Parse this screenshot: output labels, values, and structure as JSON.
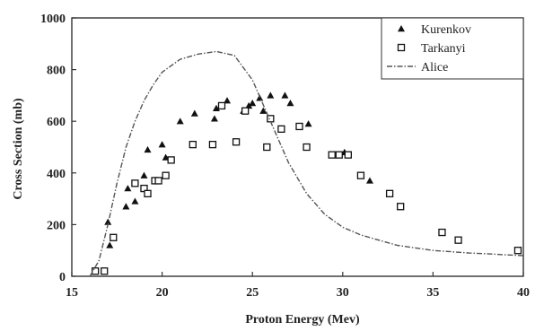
{
  "chart_data": {
    "type": "scatter",
    "xlabel": "Proton Energy (Mev)",
    "ylabel": "Cross Section (mb)",
    "xlim": [
      15,
      40
    ],
    "ylim": [
      0,
      1000
    ],
    "xticks": [
      15,
      20,
      25,
      30,
      35,
      40
    ],
    "yticks": [
      0,
      200,
      400,
      600,
      800,
      1000
    ],
    "grid": false,
    "legend_position": "top-right",
    "series": [
      {
        "name": "Kurenkov",
        "marker": "triangle",
        "color": "#111111",
        "points": [
          [
            17.0,
            210
          ],
          [
            17.1,
            120
          ],
          [
            18.0,
            270
          ],
          [
            18.1,
            340
          ],
          [
            18.5,
            290
          ],
          [
            19.0,
            390
          ],
          [
            19.2,
            490
          ],
          [
            20.0,
            510
          ],
          [
            20.2,
            460
          ],
          [
            21.0,
            600
          ],
          [
            21.8,
            630
          ],
          [
            22.9,
            610
          ],
          [
            23.0,
            650
          ],
          [
            23.6,
            680
          ],
          [
            24.5,
            640
          ],
          [
            24.8,
            660
          ],
          [
            25.0,
            670
          ],
          [
            25.4,
            690
          ],
          [
            25.6,
            640
          ],
          [
            26.0,
            700
          ],
          [
            26.8,
            700
          ],
          [
            27.1,
            670
          ],
          [
            28.1,
            590
          ],
          [
            30.1,
            480
          ],
          [
            31.5,
            370
          ]
        ]
      },
      {
        "name": "Tarkanyi",
        "marker": "square",
        "color": "#111111",
        "points": [
          [
            16.3,
            20
          ],
          [
            16.8,
            20
          ],
          [
            17.3,
            150
          ],
          [
            18.5,
            360
          ],
          [
            19.0,
            340
          ],
          [
            19.2,
            320
          ],
          [
            19.6,
            370
          ],
          [
            19.8,
            370
          ],
          [
            20.2,
            390
          ],
          [
            20.5,
            450
          ],
          [
            21.7,
            510
          ],
          [
            22.8,
            510
          ],
          [
            23.3,
            660
          ],
          [
            24.1,
            520
          ],
          [
            24.6,
            640
          ],
          [
            25.8,
            500
          ],
          [
            26.0,
            610
          ],
          [
            26.6,
            570
          ],
          [
            27.6,
            580
          ],
          [
            28.0,
            500
          ],
          [
            29.4,
            470
          ],
          [
            29.8,
            470
          ],
          [
            30.3,
            470
          ],
          [
            31.0,
            390
          ],
          [
            32.6,
            320
          ],
          [
            33.2,
            270
          ],
          [
            35.5,
            170
          ],
          [
            36.4,
            140
          ],
          [
            39.7,
            100
          ]
        ]
      },
      {
        "name": "Alice",
        "line_style": "dash-dot",
        "color": "#555555",
        "points": [
          [
            16.0,
            0
          ],
          [
            16.5,
            60
          ],
          [
            17.0,
            200
          ],
          [
            17.5,
            360
          ],
          [
            18.0,
            500
          ],
          [
            18.5,
            600
          ],
          [
            19.0,
            680
          ],
          [
            19.5,
            740
          ],
          [
            20.0,
            790
          ],
          [
            21.0,
            840
          ],
          [
            22.0,
            860
          ],
          [
            23.0,
            870
          ],
          [
            24.0,
            855
          ],
          [
            25.0,
            760
          ],
          [
            26.0,
            600
          ],
          [
            27.0,
            440
          ],
          [
            28.0,
            320
          ],
          [
            29.0,
            240
          ],
          [
            30.0,
            190
          ],
          [
            31.0,
            160
          ],
          [
            32.0,
            140
          ],
          [
            33.0,
            120
          ],
          [
            34.0,
            110
          ],
          [
            35.0,
            100
          ],
          [
            36.0,
            95
          ],
          [
            37.0,
            90
          ],
          [
            38.0,
            87
          ],
          [
            39.0,
            83
          ],
          [
            40.0,
            80
          ]
        ]
      }
    ]
  }
}
